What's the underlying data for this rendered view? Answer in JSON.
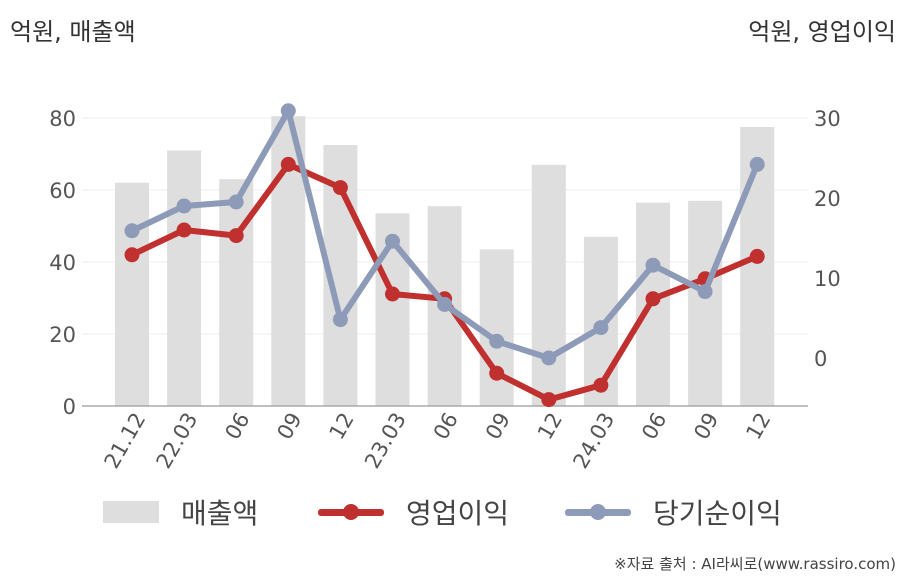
{
  "units": {
    "left": "억원, 매출액",
    "right": "억원, 영업이익"
  },
  "source": "※자료 출처 : AI라씨로(www.rassiro.com)",
  "legend": [
    {
      "label": "매출액",
      "kind": "bar",
      "color": "#dedede"
    },
    {
      "label": "영업이익",
      "kind": "line",
      "color": "#c0302e"
    },
    {
      "label": "당기순이익",
      "kind": "line",
      "color": "#8e9bb8"
    }
  ],
  "chart_data": {
    "type": "bar",
    "categories": [
      "21.12",
      "22.03",
      "06",
      "09",
      "12",
      "23.03",
      "06",
      "09",
      "12",
      "24.03",
      "06",
      "09",
      "12"
    ],
    "left_axis": {
      "ticks": [
        0,
        20,
        40,
        60,
        80
      ],
      "ylim": [
        0,
        80
      ]
    },
    "right_axis": {
      "ticks": [
        0,
        10,
        20,
        30
      ]
    },
    "series": [
      {
        "name": "매출액",
        "type": "bar",
        "axis": "left",
        "color": "#dedede",
        "values": [
          62,
          71,
          63,
          80.5,
          72.5,
          53.5,
          55.5,
          43.5,
          67,
          47,
          56.5,
          57,
          77.5
        ]
      },
      {
        "name": "영업이익",
        "type": "line",
        "axis": "right",
        "color": "#c0302e",
        "values": [
          12.9,
          16.0,
          15.3,
          24.2,
          21.3,
          8.0,
          7.4,
          -1.9,
          -5.2,
          -3.4,
          7.4,
          9.9,
          12.7
        ]
      },
      {
        "name": "당기순이익",
        "type": "line",
        "axis": "right",
        "color": "#8e9bb8",
        "values": [
          15.9,
          19.0,
          19.5,
          30.9,
          4.8,
          14.6,
          6.7,
          2.1,
          0.0,
          3.8,
          11.6,
          8.3,
          24.2
        ]
      }
    ],
    "grid": true
  }
}
